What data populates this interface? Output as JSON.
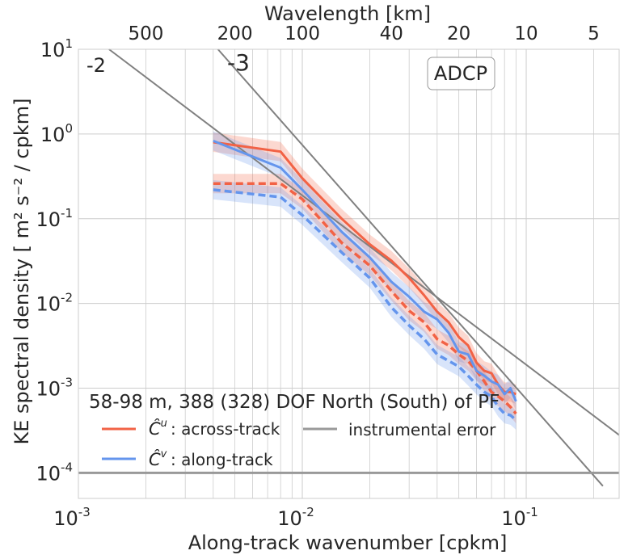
{
  "chart_data": {
    "type": "line",
    "xscale": "log",
    "yscale": "log",
    "xlim": [
      0.001,
      0.26
    ],
    "ylim": [
      5e-05,
      10
    ],
    "grid": true,
    "xlabel": "Along-track wavenumber [cpkm]",
    "ylabel": "KE spectral density [ m² s⁻² / cpkm]",
    "top_xlabel": "Wavelength [km]",
    "x_ticks": [
      {
        "value": 0.001,
        "base": "10",
        "exp": "-3"
      },
      {
        "value": 0.01,
        "base": "10",
        "exp": "-2"
      },
      {
        "value": 0.1,
        "base": "10",
        "exp": "-1"
      }
    ],
    "y_ticks": [
      {
        "value": 10,
        "base": "10",
        "exp": "1"
      },
      {
        "value": 1,
        "base": "10",
        "exp": "0"
      },
      {
        "value": 0.1,
        "base": "10",
        "exp": "-1"
      },
      {
        "value": 0.01,
        "base": "10",
        "exp": "-2"
      },
      {
        "value": 0.001,
        "base": "10",
        "exp": "-3"
      },
      {
        "value": 0.0001,
        "base": "10",
        "exp": "-4"
      }
    ],
    "top_ticks": [
      {
        "wavelength": 500,
        "label": "500"
      },
      {
        "wavelength": 200,
        "label": "200"
      },
      {
        "wavelength": 100,
        "label": "100"
      },
      {
        "wavelength": 40,
        "label": "40"
      },
      {
        "wavelength": 20,
        "label": "20"
      },
      {
        "wavelength": 10,
        "label": "10"
      },
      {
        "wavelength": 5,
        "label": "5"
      }
    ],
    "annotations": {
      "slope_minus2": "-2",
      "slope_minus3": "-3",
      "box_label": "ADCP",
      "legend_title": "58-98 m, 388 (328) DOF North (South) of PF"
    },
    "legend": [
      {
        "key": "u",
        "symbol": "Ĉ",
        "sup": "u",
        "label": ": across-track",
        "color": "#f26245"
      },
      {
        "key": "v",
        "symbol": "Ĉ",
        "sup": "v",
        "label": ": along-track",
        "color": "#6495ed"
      },
      {
        "key": "err",
        "label": "instrumental error",
        "color": "#999999"
      }
    ],
    "colors": {
      "across": "#f26245",
      "along": "#6495ed",
      "error": "#999999",
      "reference": "#808080",
      "grid": "#cccccc"
    },
    "series": [
      {
        "id": "across_north",
        "style": "solid",
        "color": "#f26245",
        "x": [
          0.004,
          0.008,
          0.01,
          0.015,
          0.02,
          0.025,
          0.03,
          0.035,
          0.04,
          0.045,
          0.05,
          0.055,
          0.06,
          0.065,
          0.07,
          0.075,
          0.08,
          0.085,
          0.09
        ],
        "y": [
          0.8,
          0.62,
          0.3,
          0.1,
          0.05,
          0.032,
          0.02,
          0.0125,
          0.008,
          0.006,
          0.004,
          0.0032,
          0.002,
          0.0016,
          0.0015,
          0.0011,
          0.0009,
          0.0009,
          0.00085
        ]
      },
      {
        "id": "along_north",
        "style": "solid",
        "color": "#6495ed",
        "x": [
          0.004,
          0.008,
          0.01,
          0.015,
          0.02,
          0.025,
          0.03,
          0.035,
          0.04,
          0.045,
          0.05,
          0.055,
          0.06,
          0.065,
          0.07,
          0.075,
          0.08,
          0.085,
          0.09
        ],
        "y": [
          0.83,
          0.4,
          0.22,
          0.07,
          0.035,
          0.018,
          0.012,
          0.008,
          0.0065,
          0.0045,
          0.0027,
          0.0025,
          0.0016,
          0.0014,
          0.0012,
          0.0011,
          0.00085,
          0.001,
          0.0007
        ]
      },
      {
        "id": "across_south",
        "style": "dashed",
        "color": "#f26245",
        "x": [
          0.004,
          0.008,
          0.01,
          0.015,
          0.02,
          0.025,
          0.03,
          0.035,
          0.04,
          0.045,
          0.05,
          0.055,
          0.06,
          0.065,
          0.07,
          0.075,
          0.08,
          0.085,
          0.09
        ],
        "y": [
          0.26,
          0.26,
          0.17,
          0.052,
          0.028,
          0.014,
          0.0082,
          0.006,
          0.0038,
          0.0032,
          0.0025,
          0.0021,
          0.0016,
          0.0012,
          0.0009,
          0.0008,
          0.0007,
          0.0006,
          0.0005
        ]
      },
      {
        "id": "along_south",
        "style": "dashed",
        "color": "#6495ed",
        "x": [
          0.004,
          0.008,
          0.01,
          0.015,
          0.02,
          0.025,
          0.03,
          0.035,
          0.04,
          0.045,
          0.05,
          0.055,
          0.06,
          0.065,
          0.07,
          0.075,
          0.08,
          0.085,
          0.09
        ],
        "y": [
          0.22,
          0.18,
          0.11,
          0.04,
          0.02,
          0.009,
          0.0055,
          0.0038,
          0.0025,
          0.0021,
          0.0018,
          0.0014,
          0.0011,
          0.0009,
          0.0008,
          0.0006,
          0.0005,
          0.00048,
          0.00042
        ]
      }
    ],
    "reference_lines": [
      {
        "id": "slope_minus2",
        "x": [
          0.00137,
          0.26
        ],
        "y": [
          10,
          0.00028
        ]
      },
      {
        "id": "slope_minus3",
        "x": [
          0.0042,
          0.22
        ],
        "y": [
          10,
          7e-05
        ]
      }
    ],
    "instrumental_error_level": 0.0001
  }
}
